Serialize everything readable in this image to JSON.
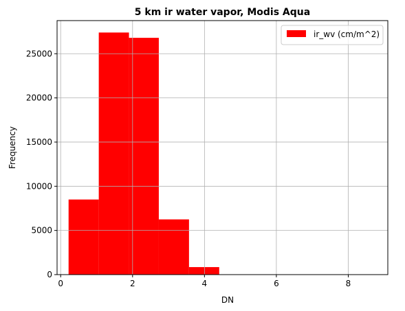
{
  "chart_data": {
    "type": "bar",
    "title": "5 km ir water vapor, Modis Aqua",
    "xlabel": "DN",
    "ylabel": "Frequency",
    "xlim": [
      -0.1,
      9.1
    ],
    "ylim": [
      0,
      28750
    ],
    "xticks": [
      0,
      2,
      4,
      6,
      8
    ],
    "yticks": [
      0,
      5000,
      10000,
      15000,
      20000,
      25000
    ],
    "grid": true,
    "legend_position": "top-right",
    "bar_color": "#ff0000",
    "series": [
      {
        "name": "ir_wv (cm/m^2)",
        "bins": [
          {
            "x0": 0.22,
            "x1": 1.06,
            "value": 8500
          },
          {
            "x0": 1.06,
            "x1": 1.9,
            "value": 27400
          },
          {
            "x0": 1.9,
            "x1": 2.73,
            "value": 26800
          },
          {
            "x0": 2.73,
            "x1": 3.57,
            "value": 6250
          },
          {
            "x0": 3.57,
            "x1": 4.41,
            "value": 850
          },
          {
            "x0": 4.41,
            "x1": 5.25,
            "value": 15
          },
          {
            "x0": 5.25,
            "x1": 6.09,
            "value": 2
          },
          {
            "x0": 6.09,
            "x1": 6.93,
            "value": 0
          },
          {
            "x0": 6.93,
            "x1": 7.76,
            "value": 0
          },
          {
            "x0": 7.76,
            "x1": 8.6,
            "value": 1
          }
        ]
      }
    ]
  }
}
